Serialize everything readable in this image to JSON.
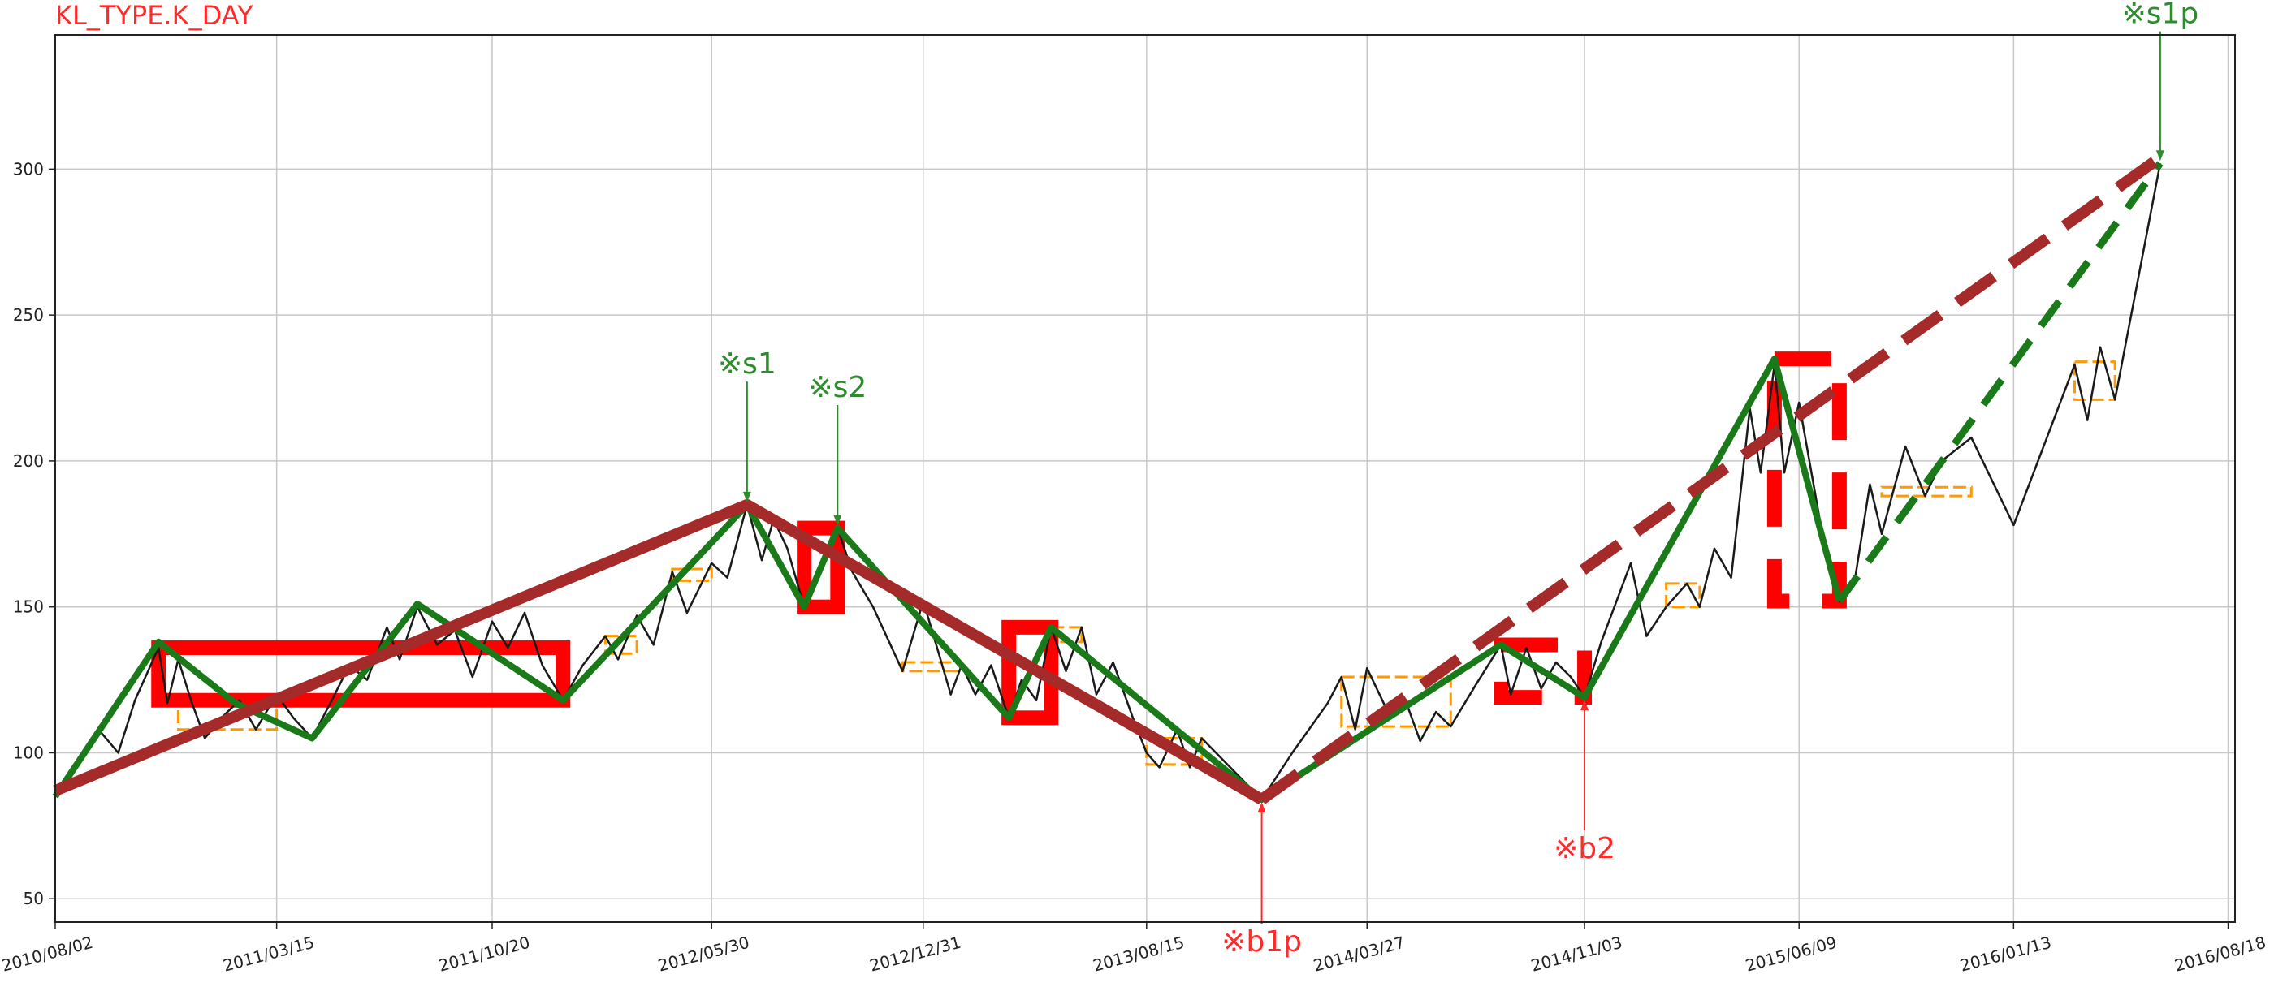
{
  "chart_data": {
    "type": "line",
    "title": "KL_TYPE.K_DAY",
    "xlabel": "",
    "ylabel": "",
    "x_ticks": [
      "2010/08/02",
      "2011/03/15",
      "2011/10/20",
      "2012/05/30",
      "2012/12/31",
      "2013/08/15",
      "2014/03/27",
      "2014/11/03",
      "2015/06/09",
      "2016/01/13",
      "2016/08/18"
    ],
    "xlim": [
      "2010/08/02",
      "2016/08/25"
    ],
    "y_ticks": [
      50,
      100,
      150,
      200,
      250,
      300
    ],
    "ylim": [
      42,
      346
    ],
    "grid": true,
    "colors": {
      "price": "#1a1a1a",
      "bi": "#1a7a1a",
      "seg": "#a52a2a",
      "zs": "#ff0000",
      "bi_zs": "#ff9900",
      "sell": "#2e8b2e",
      "buy": "#ff2a2a",
      "title": "#ff2a2a"
    },
    "series": [
      {
        "role": "price",
        "points": [
          [
            "2010/08/02",
            85
          ],
          [
            "2010/08/20",
            95
          ],
          [
            "2010/09/15",
            108
          ],
          [
            "2010/10/05",
            100
          ],
          [
            "2010/10/22",
            118
          ],
          [
            "2010/11/15",
            136
          ],
          [
            "2010/11/24",
            117
          ],
          [
            "2010/12/05",
            132
          ],
          [
            "2010/12/18",
            118
          ],
          [
            "2011/01/01",
            105
          ],
          [
            "2011/01/18",
            112
          ],
          [
            "2011/02/05",
            118
          ],
          [
            "2011/02/22",
            108
          ],
          [
            "2011/03/15",
            120
          ],
          [
            "2011/04/01",
            112
          ],
          [
            "2011/04/20",
            105
          ],
          [
            "2011/05/10",
            118
          ],
          [
            "2011/05/28",
            130
          ],
          [
            "2011/06/15",
            125
          ],
          [
            "2011/07/05",
            143
          ],
          [
            "2011/07/18",
            132
          ],
          [
            "2011/08/05",
            150
          ],
          [
            "2011/08/25",
            137
          ],
          [
            "2011/09/12",
            142
          ],
          [
            "2011/09/30",
            126
          ],
          [
            "2011/10/20",
            145
          ],
          [
            "2011/11/05",
            136
          ],
          [
            "2011/11/22",
            148
          ],
          [
            "2011/12/10",
            130
          ],
          [
            "2011/12/31",
            118
          ],
          [
            "2012/01/20",
            130
          ],
          [
            "2012/02/12",
            140
          ],
          [
            "2012/02/25",
            132
          ],
          [
            "2012/03/15",
            147
          ],
          [
            "2012/04/01",
            137
          ],
          [
            "2012/04/20",
            162
          ],
          [
            "2012/05/05",
            148
          ],
          [
            "2012/05/30",
            165
          ],
          [
            "2012/06/15",
            160
          ],
          [
            "2012/07/05",
            185
          ],
          [
            "2012/07/20",
            166
          ],
          [
            "2012/08/01",
            180
          ],
          [
            "2012/08/15",
            170
          ],
          [
            "2012/09/01",
            150
          ],
          [
            "2012/09/20",
            165
          ],
          [
            "2012/10/05",
            177
          ],
          [
            "2012/10/20",
            162
          ],
          [
            "2012/11/10",
            150
          ],
          [
            "2012/12/10",
            128
          ],
          [
            "2012/12/31",
            152
          ],
          [
            "2013/01/15",
            135
          ],
          [
            "2013/01/28",
            120
          ],
          [
            "2013/02/08",
            130
          ],
          [
            "2013/02/22",
            120
          ],
          [
            "2013/03/10",
            130
          ],
          [
            "2013/03/28",
            112
          ],
          [
            "2013/04/10",
            125
          ],
          [
            "2013/04/25",
            118
          ],
          [
            "2013/05/10",
            143
          ],
          [
            "2013/05/25",
            128
          ],
          [
            "2013/06/10",
            143
          ],
          [
            "2013/06/25",
            120
          ],
          [
            "2013/07/12",
            131
          ],
          [
            "2013/08/01",
            112
          ],
          [
            "2013/08/15",
            100
          ],
          [
            "2013/08/28",
            95
          ],
          [
            "2013/09/15",
            108
          ],
          [
            "2013/09/28",
            95
          ],
          [
            "2013/10/10",
            105
          ],
          [
            "2013/12/10",
            84
          ],
          [
            "2014/01/10",
            100
          ],
          [
            "2014/02/15",
            117
          ],
          [
            "2014/03/01",
            126
          ],
          [
            "2014/03/15",
            108
          ],
          [
            "2014/03/27",
            129
          ],
          [
            "2014/04/20",
            112
          ],
          [
            "2014/05/05",
            118
          ],
          [
            "2014/05/20",
            104
          ],
          [
            "2014/06/05",
            114
          ],
          [
            "2014/06/20",
            109
          ],
          [
            "2014/07/15",
            123
          ],
          [
            "2014/08/10",
            137
          ],
          [
            "2014/08/20",
            120
          ],
          [
            "2014/09/05",
            136
          ],
          [
            "2014/09/20",
            122
          ],
          [
            "2014/10/05",
            131
          ],
          [
            "2014/10/20",
            126
          ],
          [
            "2014/11/03",
            119
          ],
          [
            "2014/11/20",
            138
          ],
          [
            "2014/12/20",
            165
          ],
          [
            "2015/01/05",
            140
          ],
          [
            "2015/01/25",
            150
          ],
          [
            "2015/02/15",
            158
          ],
          [
            "2015/02/28",
            150
          ],
          [
            "2015/03/15",
            170
          ],
          [
            "2015/04/01",
            160
          ],
          [
            "2015/04/20",
            218
          ],
          [
            "2015/05/01",
            196
          ],
          [
            "2015/05/15",
            233
          ],
          [
            "2015/05/25",
            196
          ],
          [
            "2015/06/09",
            220
          ],
          [
            "2015/06/30",
            180
          ],
          [
            "2015/07/20",
            152
          ],
          [
            "2015/08/05",
            160
          ],
          [
            "2015/08/20",
            192
          ],
          [
            "2015/09/01",
            175
          ],
          [
            "2015/09/25",
            205
          ],
          [
            "2015/10/15",
            188
          ],
          [
            "2015/11/01",
            200
          ],
          [
            "2015/12/01",
            208
          ],
          [
            "2016/01/13",
            178
          ],
          [
            "2016/03/15",
            233
          ],
          [
            "2016/03/28",
            214
          ],
          [
            "2016/04/10",
            239
          ],
          [
            "2016/04/25",
            221
          ],
          [
            "2016/06/10",
            302
          ]
        ]
      },
      {
        "role": "bi",
        "points": [
          [
            "2010/08/02",
            85
          ],
          [
            "2010/11/15",
            138
          ],
          [
            "2011/02/01",
            117
          ],
          [
            "2011/04/20",
            105
          ],
          [
            "2011/08/05",
            151
          ],
          [
            "2011/12/31",
            118
          ],
          [
            "2012/07/05",
            185
          ],
          [
            "2012/09/01",
            150
          ],
          [
            "2012/10/05",
            177
          ],
          [
            "2013/03/28",
            112
          ],
          [
            "2013/05/10",
            143
          ],
          [
            "2013/12/10",
            84
          ],
          [
            "2014/08/10",
            137
          ],
          [
            "2014/11/03",
            119
          ],
          [
            "2015/05/15",
            235
          ],
          [
            "2015/07/20",
            152
          ]
        ]
      },
      {
        "role": "bi_dashed",
        "points": [
          [
            "2015/07/20",
            152
          ],
          [
            "2016/06/10",
            302
          ]
        ]
      },
      {
        "role": "seg",
        "points": [
          [
            "2010/08/02",
            87
          ],
          [
            "2012/07/05",
            185
          ],
          [
            "2013/12/10",
            84
          ]
        ]
      },
      {
        "role": "seg_dashed",
        "points": [
          [
            "2013/12/10",
            84
          ],
          [
            "2016/06/10",
            304
          ]
        ]
      }
    ],
    "zs_boxes": [
      {
        "x0": "2010/11/15",
        "x1": "2011/12/31",
        "y0": 118,
        "y1": 136,
        "style": "solid"
      },
      {
        "x0": "2012/09/01",
        "x1": "2012/10/05",
        "y0": 150,
        "y1": 177,
        "style": "solid"
      },
      {
        "x0": "2013/03/28",
        "x1": "2013/05/10",
        "y0": 112,
        "y1": 143,
        "style": "solid"
      },
      {
        "x0": "2014/08/10",
        "x1": "2014/11/03",
        "y0": 119,
        "y1": 137,
        "style": "dashed"
      },
      {
        "x0": "2015/05/15",
        "x1": "2015/07/20",
        "y0": 152,
        "y1": 235,
        "style": "dashed"
      }
    ],
    "bi_zs_boxes": [
      {
        "x0": "2010/12/05",
        "x1": "2011/03/15",
        "y0": 108,
        "y1": 118
      },
      {
        "x0": "2012/02/12",
        "x1": "2012/03/15",
        "y0": 134,
        "y1": 140
      },
      {
        "x0": "2012/04/20",
        "x1": "2012/05/30",
        "y0": 159,
        "y1": 163
      },
      {
        "x0": "2012/12/10",
        "x1": "2013/02/08",
        "y0": 128,
        "y1": 131
      },
      {
        "x0": "2013/05/10",
        "x1": "2013/06/10",
        "y0": 138,
        "y1": 143
      },
      {
        "x0": "2013/08/15",
        "x1": "2013/10/10",
        "y0": 96,
        "y1": 105
      },
      {
        "x0": "2014/03/01",
        "x1": "2014/06/20",
        "y0": 109,
        "y1": 126
      },
      {
        "x0": "2015/01/25",
        "x1": "2015/02/28",
        "y0": 150,
        "y1": 158
      },
      {
        "x0": "2015/09/01",
        "x1": "2015/12/01",
        "y0": 188,
        "y1": 191
      },
      {
        "x0": "2016/03/15",
        "x1": "2016/04/25",
        "y0": 221,
        "y1": 234
      }
    ],
    "annotations": [
      {
        "label": "※s1",
        "x": "2012/07/05",
        "y": 185,
        "kind": "sell",
        "text_y": 230
      },
      {
        "label": "※s2",
        "x": "2012/10/05",
        "y": 177,
        "kind": "sell",
        "text_y": 222
      },
      {
        "label": "※b1p",
        "x": "2013/12/10",
        "y": 84,
        "kind": "buy",
        "text_y": 32
      },
      {
        "label": "※b2",
        "x": "2014/11/03",
        "y": 119,
        "kind": "buy",
        "text_y": 64
      },
      {
        "label": "※s1p",
        "x": "2016/06/10",
        "y": 302,
        "kind": "sell",
        "text_y": 350
      }
    ]
  }
}
